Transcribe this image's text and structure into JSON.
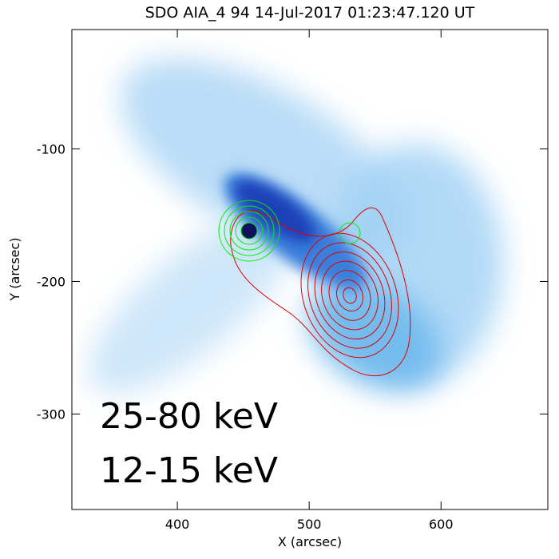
{
  "chart_data": {
    "type": "image",
    "title": "SDO AIA_4 94 14-Jul-2017 01:23:47.120 UT",
    "x_label": "X (arcsec)",
    "y_label": "Y (arcsec)",
    "xlim": [
      320,
      681
    ],
    "ylim": [
      -372,
      -10
    ],
    "xticks": [
      400,
      500,
      600
    ],
    "yticks": [
      -300,
      -200,
      -100
    ],
    "annotations": [
      {
        "text": "25-80 keV",
        "color": "#00ff00"
      },
      {
        "text": "12-15 keV",
        "color": "#ff0000"
      }
    ]
  }
}
